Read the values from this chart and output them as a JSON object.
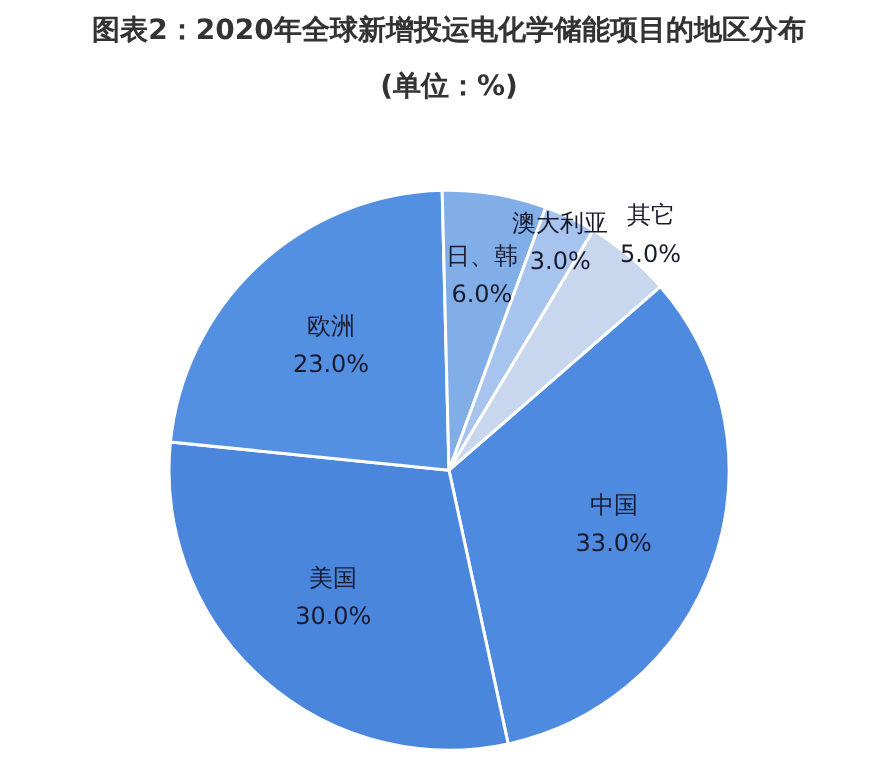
{
  "chart_data": {
    "type": "pie",
    "title": "图表2：2020年全球新增投运电化学储能项目的地区分布",
    "subtitle": "(单位：%)",
    "categories": [
      "中国",
      "美国",
      "欧洲",
      "日、韩",
      "澳大利亚",
      "其它"
    ],
    "values": [
      33,
      30,
      23,
      6,
      3,
      5
    ],
    "value_labels": [
      "33.0%",
      "30.0%",
      "23.0%",
      "6.0%",
      "3.0%",
      "5.0%"
    ],
    "colors": [
      "#4d8ae0",
      "#4a86dc",
      "#5490e2",
      "#82aee8",
      "#a6c4ee",
      "#c9d7ee"
    ]
  }
}
